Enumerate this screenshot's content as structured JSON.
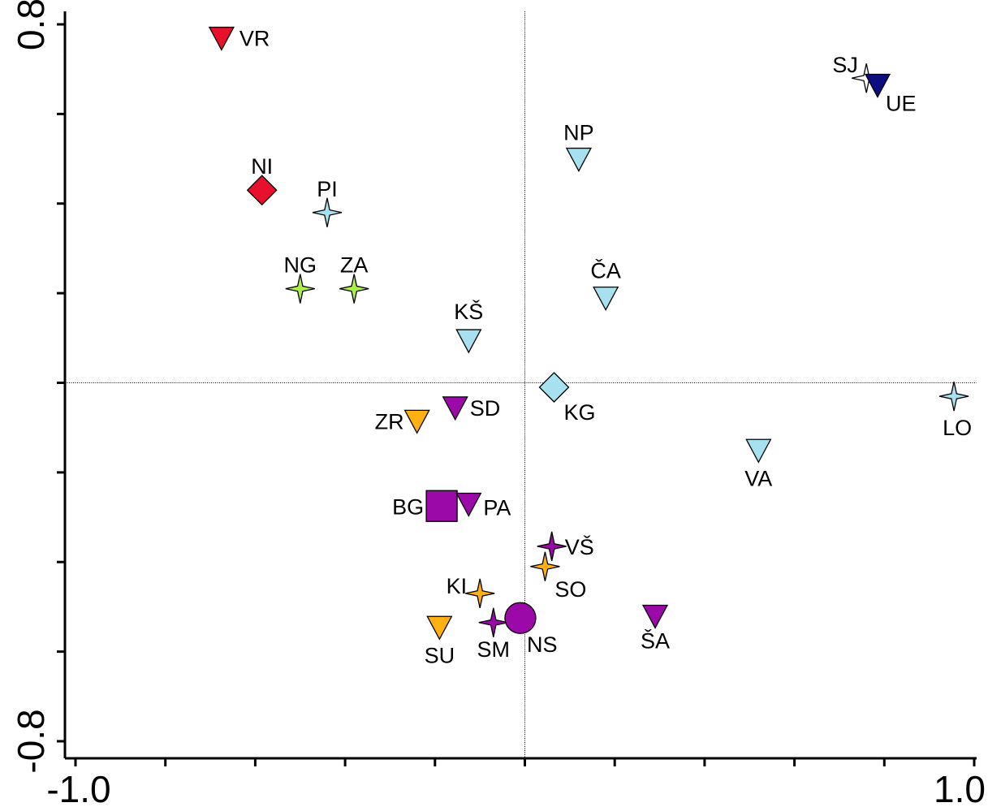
{
  "chart_data": {
    "type": "scatter",
    "title": "",
    "xlabel": "",
    "ylabel": "",
    "xlim": [
      -1.0,
      1.0
    ],
    "ylim": [
      -0.8,
      0.8
    ],
    "x_tick_labels": [
      "-1.0",
      "1.0"
    ],
    "y_tick_labels": [
      "0.8",
      "-0.8"
    ],
    "reference_lines": {
      "x": 0,
      "y": 0
    },
    "points": [
      {
        "label": "VR",
        "x": -0.675,
        "y": 0.77,
        "shape": "triangle-down",
        "color": "#e8112d"
      },
      {
        "label": "NI",
        "x": -0.585,
        "y": 0.43,
        "shape": "diamond",
        "color": "#e8112d"
      },
      {
        "label": "PI",
        "x": -0.44,
        "y": 0.38,
        "shape": "star4",
        "color": "#a7e0ee"
      },
      {
        "label": "NG",
        "x": -0.5,
        "y": 0.21,
        "shape": "star4",
        "color": "#aef04a"
      },
      {
        "label": "ZA",
        "x": -0.38,
        "y": 0.21,
        "shape": "star4",
        "color": "#aef04a"
      },
      {
        "label": "KŠ",
        "x": -0.125,
        "y": 0.095,
        "shape": "triangle-down",
        "color": "#a7e0ee"
      },
      {
        "label": "NP",
        "x": 0.12,
        "y": 0.5,
        "shape": "triangle-down",
        "color": "#a7e0ee"
      },
      {
        "label": "ČA",
        "x": 0.18,
        "y": 0.19,
        "shape": "triangle-down",
        "color": "#a7e0ee"
      },
      {
        "label": "SJ",
        "x": 0.76,
        "y": 0.68,
        "shape": "star4",
        "color": "#ffffff"
      },
      {
        "label": "UE",
        "x": 0.785,
        "y": 0.665,
        "shape": "triangle-down",
        "color": "#0d0d80"
      },
      {
        "label": "KG",
        "x": 0.065,
        "y": -0.01,
        "shape": "diamond",
        "color": "#a7e0ee"
      },
      {
        "label": "LO",
        "x": 0.955,
        "y": -0.03,
        "shape": "star4",
        "color": "#a7e0ee"
      },
      {
        "label": "VA",
        "x": 0.52,
        "y": -0.15,
        "shape": "triangle-down",
        "color": "#a7e0ee"
      },
      {
        "label": "SD",
        "x": -0.155,
        "y": -0.055,
        "shape": "triangle-down",
        "color": "#9b0aa8"
      },
      {
        "label": "ZR",
        "x": -0.24,
        "y": -0.085,
        "shape": "triangle-down",
        "color": "#ffb012"
      },
      {
        "label": "BG",
        "x": -0.185,
        "y": -0.275,
        "shape": "square",
        "color": "#9b0aa8"
      },
      {
        "label": "PA",
        "x": -0.125,
        "y": -0.27,
        "shape": "triangle-down",
        "color": "#9b0aa8"
      },
      {
        "label": "VŠ",
        "x": 0.06,
        "y": -0.365,
        "shape": "star4",
        "color": "#9b0aa8"
      },
      {
        "label": "SO",
        "x": 0.045,
        "y": -0.41,
        "shape": "star4",
        "color": "#ffb012"
      },
      {
        "label": "KI",
        "x": -0.1,
        "y": -0.47,
        "shape": "star4",
        "color": "#ffb012"
      },
      {
        "label": "SU",
        "x": -0.19,
        "y": -0.545,
        "shape": "triangle-down",
        "color": "#ffb012"
      },
      {
        "label": "SM",
        "x": -0.07,
        "y": -0.535,
        "shape": "star4",
        "color": "#9b0aa8"
      },
      {
        "label": "NS",
        "x": -0.01,
        "y": -0.525,
        "shape": "circle",
        "color": "#9b0aa8"
      },
      {
        "label": "ŠA",
        "x": 0.29,
        "y": -0.52,
        "shape": "triangle-down",
        "color": "#9b0aa8"
      }
    ]
  }
}
